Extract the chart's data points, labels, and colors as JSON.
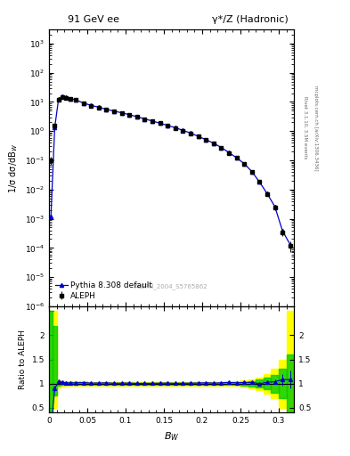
{
  "title_left": "91 GeV ee",
  "title_right": "γ*/Z (Hadronic)",
  "xlabel": "$B_W$",
  "ylabel_main": "1/σ dσ/dB$_W$",
  "ylabel_ratio": "Ratio to ALEPH",
  "watermark": "ALEPH_2004_S5765862",
  "right_label_top": "Rivet 3.1.10, 3.5M events",
  "right_label_bot": "mcplots.cern.ch [arXiv:1306.3436]",
  "xlim": [
    0.0,
    0.32
  ],
  "ylim_main": [
    1e-06,
    3000.0
  ],
  "ylim_ratio": [
    0.4,
    2.6
  ],
  "bw_edges": [
    0.0,
    0.005,
    0.01,
    0.015,
    0.02,
    0.025,
    0.03,
    0.04,
    0.05,
    0.06,
    0.07,
    0.08,
    0.09,
    0.1,
    0.11,
    0.12,
    0.13,
    0.14,
    0.15,
    0.16,
    0.17,
    0.18,
    0.19,
    0.2,
    0.21,
    0.22,
    0.23,
    0.24,
    0.25,
    0.26,
    0.27,
    0.28,
    0.29,
    0.3,
    0.31,
    0.32
  ],
  "aleph_vals": [
    0.1,
    1.5,
    12.0,
    15.0,
    14.0,
    13.0,
    11.5,
    9.0,
    7.5,
    6.5,
    5.5,
    4.8,
    4.2,
    3.6,
    3.1,
    2.6,
    2.2,
    1.85,
    1.55,
    1.3,
    1.05,
    0.85,
    0.65,
    0.5,
    0.38,
    0.27,
    0.18,
    0.12,
    0.075,
    0.04,
    0.018,
    0.007,
    0.0025,
    0.00035,
    0.00012
  ],
  "aleph_err_lo": [
    0.03,
    0.3,
    1.0,
    1.0,
    0.9,
    0.8,
    0.7,
    0.5,
    0.4,
    0.35,
    0.3,
    0.25,
    0.22,
    0.18,
    0.15,
    0.13,
    0.11,
    0.09,
    0.08,
    0.07,
    0.055,
    0.045,
    0.035,
    0.027,
    0.02,
    0.015,
    0.01,
    0.007,
    0.005,
    0.003,
    0.002,
    0.001,
    0.0005,
    0.0001,
    5e-05
  ],
  "aleph_err_hi": [
    0.03,
    0.3,
    1.0,
    1.0,
    0.9,
    0.8,
    0.7,
    0.5,
    0.4,
    0.35,
    0.3,
    0.25,
    0.22,
    0.18,
    0.15,
    0.13,
    0.11,
    0.09,
    0.08,
    0.07,
    0.055,
    0.045,
    0.035,
    0.027,
    0.02,
    0.015,
    0.01,
    0.007,
    0.005,
    0.003,
    0.002,
    0.001,
    0.0005,
    0.0001,
    5e-05
  ],
  "pythia_vals": [
    0.0012,
    1.35,
    12.5,
    15.5,
    14.2,
    13.2,
    11.7,
    9.2,
    7.6,
    6.6,
    5.6,
    4.85,
    4.25,
    3.65,
    3.12,
    2.62,
    2.22,
    1.87,
    1.57,
    1.31,
    1.06,
    0.86,
    0.66,
    0.51,
    0.385,
    0.275,
    0.185,
    0.122,
    0.077,
    0.041,
    0.018,
    0.0072,
    0.0026,
    0.00038,
    0.00013
  ],
  "ratio_pythia": [
    0.012,
    0.9,
    1.042,
    1.033,
    1.014,
    1.015,
    1.017,
    1.022,
    1.013,
    1.015,
    1.018,
    1.01,
    1.012,
    1.014,
    1.006,
    1.008,
    1.009,
    1.011,
    1.013,
    1.008,
    1.01,
    1.012,
    1.015,
    1.02,
    1.013,
    1.019,
    1.028,
    1.017,
    1.027,
    1.025,
    1.0,
    1.029,
    1.04,
    1.086,
    1.083
  ],
  "ratio_err_lo_green": [
    0.6,
    0.25,
    0.04,
    0.03,
    0.03,
    0.03,
    0.03,
    0.025,
    0.02,
    0.02,
    0.02,
    0.018,
    0.018,
    0.018,
    0.018,
    0.018,
    0.018,
    0.018,
    0.018,
    0.02,
    0.02,
    0.02,
    0.02,
    0.02,
    0.02,
    0.02,
    0.025,
    0.03,
    0.04,
    0.06,
    0.08,
    0.12,
    0.18,
    0.3,
    0.6
  ],
  "ratio_err_hi_green": [
    1.5,
    1.2,
    0.04,
    0.03,
    0.03,
    0.03,
    0.03,
    0.025,
    0.02,
    0.02,
    0.02,
    0.018,
    0.018,
    0.018,
    0.018,
    0.018,
    0.018,
    0.018,
    0.018,
    0.02,
    0.02,
    0.02,
    0.02,
    0.02,
    0.02,
    0.02,
    0.025,
    0.03,
    0.04,
    0.06,
    0.08,
    0.12,
    0.18,
    0.3,
    0.6
  ],
  "ratio_err_lo_yellow": [
    0.6,
    0.5,
    0.07,
    0.055,
    0.05,
    0.05,
    0.05,
    0.045,
    0.035,
    0.035,
    0.035,
    0.032,
    0.032,
    0.032,
    0.032,
    0.032,
    0.032,
    0.032,
    0.032,
    0.035,
    0.035,
    0.035,
    0.035,
    0.035,
    0.035,
    0.035,
    0.04,
    0.05,
    0.065,
    0.09,
    0.13,
    0.2,
    0.3,
    0.5,
    0.6
  ],
  "ratio_err_hi_yellow": [
    1.5,
    1.5,
    0.07,
    0.055,
    0.05,
    0.05,
    0.05,
    0.045,
    0.035,
    0.035,
    0.035,
    0.032,
    0.032,
    0.032,
    0.032,
    0.032,
    0.032,
    0.032,
    0.032,
    0.035,
    0.035,
    0.035,
    0.035,
    0.035,
    0.035,
    0.035,
    0.04,
    0.05,
    0.065,
    0.09,
    0.13,
    0.2,
    0.3,
    0.5,
    1.5
  ],
  "color_data": "#000000",
  "color_pythia": "#0000cc",
  "color_green": "#00cc00",
  "color_yellow": "#ffff00",
  "bg_color": "#ffffff",
  "xticks": [
    0.0,
    0.05,
    0.1,
    0.15,
    0.2,
    0.25,
    0.3
  ],
  "xtick_labels": [
    "0",
    "0.05",
    "0.1",
    "0.15",
    "0.2",
    "0.25",
    "0.3"
  ],
  "yticks_ratio_left": [
    0.5,
    1.0,
    1.5,
    2.0,
    2.5
  ],
  "ytick_labels_ratio_left": [
    "0.5",
    "1",
    "1.5",
    "2",
    ""
  ],
  "yticks_ratio_right": [
    0.5,
    1.0,
    1.5,
    2.0
  ],
  "ytick_labels_ratio_right": [
    "0.5",
    "1",
    "1.5",
    "2"
  ]
}
